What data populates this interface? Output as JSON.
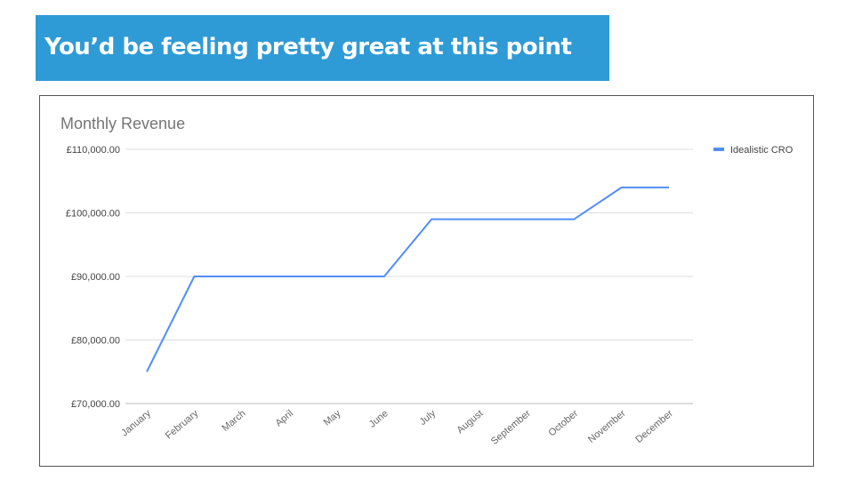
{
  "slide": {
    "title": "You’d be feeling pretty great at this point",
    "banner_color": "#2e9bd6"
  },
  "chart_data": {
    "type": "line",
    "title": "Monthly Revenue",
    "categories": [
      "January",
      "February",
      "March",
      "April",
      "May",
      "June",
      "July",
      "August",
      "September",
      "October",
      "November",
      "December"
    ],
    "series": [
      {
        "name": "Idealistic CRO",
        "color": "#4f8ef7",
        "values": [
          75000,
          90000,
          90000,
          90000,
          90000,
          90000,
          99000,
          99000,
          99000,
          99000,
          104000,
          104000
        ]
      }
    ],
    "ylim": [
      70000,
      110000
    ],
    "yticks": [
      70000,
      80000,
      90000,
      100000,
      110000
    ],
    "ytick_labels": [
      "£70,000.00",
      "£80,000.00",
      "£90,000.00",
      "£100,000.00",
      "£110,000.00"
    ],
    "xlabel": "",
    "ylabel": "",
    "grid": true,
    "legend": "right"
  }
}
